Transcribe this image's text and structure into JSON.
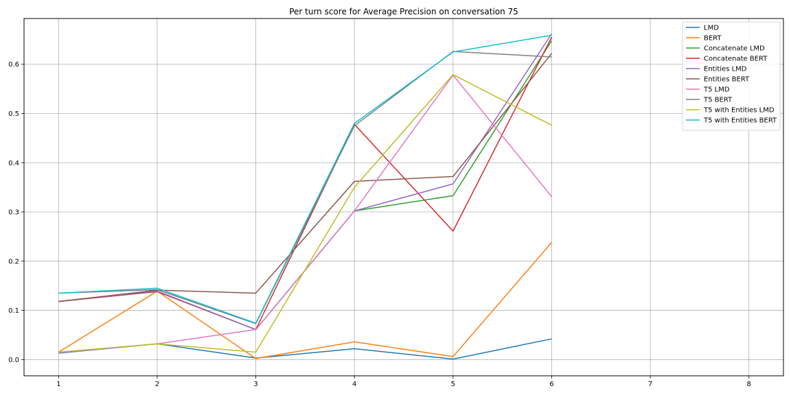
{
  "chart_data": {
    "type": "line",
    "title": "Per turn score for Average Precision on conversation 75",
    "xlabel": "",
    "ylabel": "",
    "xlim": [
      0.65,
      8.35
    ],
    "ylim": [
      -0.033,
      0.693
    ],
    "xticks": [
      1,
      2,
      3,
      4,
      5,
      6,
      7,
      8
    ],
    "yticks": [
      0.0,
      0.1,
      0.2,
      0.3,
      0.4,
      0.5,
      0.6
    ],
    "ytick_labels": [
      "0.0",
      "0.1",
      "0.2",
      "0.3",
      "0.4",
      "0.5",
      "0.6"
    ],
    "grid": true,
    "legend_position": "top-right",
    "x": [
      1,
      2,
      3,
      4,
      5,
      6
    ],
    "series": [
      {
        "name": "LMD",
        "color": "#1f77b4",
        "values": [
          0.013,
          0.032,
          0.003,
          0.022,
          0.001,
          0.042
        ]
      },
      {
        "name": "BERT",
        "color": "#ff7f0e",
        "values": [
          0.015,
          0.139,
          0.002,
          0.036,
          0.006,
          0.238
        ]
      },
      {
        "name": "Concatenate LMD",
        "color": "#2ca02c",
        "values": [
          0.118,
          0.139,
          0.061,
          0.302,
          0.333,
          0.648
        ]
      },
      {
        "name": "Concatenate BERT",
        "color": "#d62728",
        "values": [
          0.118,
          0.138,
          0.061,
          0.478,
          0.261,
          0.655
        ]
      },
      {
        "name": "Entities LMD",
        "color": "#9467bd",
        "values": [
          0.118,
          0.139,
          0.061,
          0.302,
          0.357,
          0.662
        ]
      },
      {
        "name": "Entities BERT",
        "color": "#8c564b",
        "values": [
          0.118,
          0.141,
          0.135,
          0.362,
          0.372,
          0.622
        ]
      },
      {
        "name": "T5 LMD",
        "color": "#e377c2",
        "values": [
          0.014,
          0.032,
          0.061,
          0.302,
          0.578,
          0.331
        ]
      },
      {
        "name": "T5 BERT",
        "color": "#7f7f7f",
        "values": [
          0.135,
          0.142,
          0.073,
          0.475,
          0.626,
          0.615
        ]
      },
      {
        "name": "T5 with Entities LMD",
        "color": "#bcbd22",
        "values": [
          0.015,
          0.032,
          0.015,
          0.35,
          0.579,
          0.476
        ]
      },
      {
        "name": "T5 with Entities BERT",
        "color": "#17becf",
        "values": [
          0.135,
          0.145,
          0.074,
          0.48,
          0.625,
          0.659
        ]
      }
    ]
  }
}
